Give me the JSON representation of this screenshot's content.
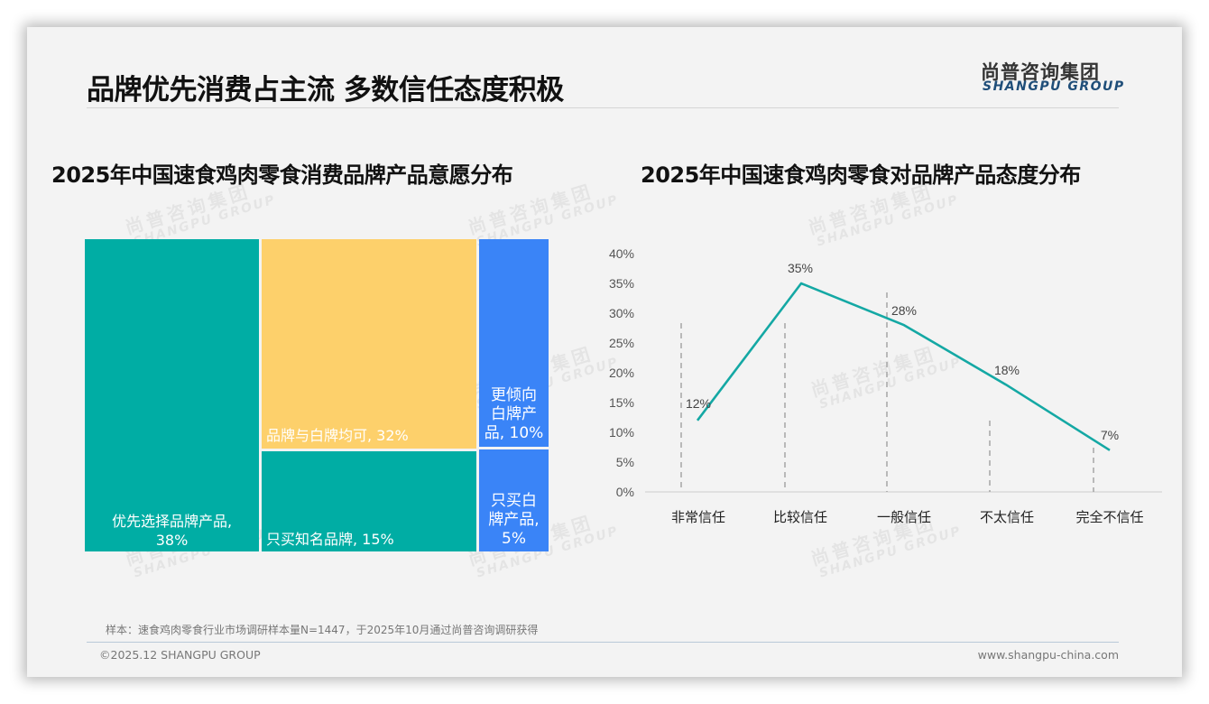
{
  "header": {
    "title": "品牌优先消费占主流 多数信任态度积极",
    "logo_cn": "尚普咨询集团",
    "logo_en": "SHANGPU GROUP"
  },
  "watermark": {
    "cn": "尚普咨询集团",
    "en": "SHANGPU GROUP"
  },
  "left_chart": {
    "title": "2025年中国速食鸡肉零食消费品牌产品意愿分布",
    "tiles": [
      {
        "label": "优先选择品牌产品,",
        "value": "38%",
        "color": "#00ada4"
      },
      {
        "label": "品牌与白牌均可, 32%",
        "color": "#fdd06b"
      },
      {
        "label": "只买知名品牌, 15%",
        "color": "#00ada4"
      },
      {
        "line1": "更倾向",
        "line2": "白牌产",
        "line3": "品, 10%",
        "color": "#3a84f7"
      },
      {
        "line1": "只买白",
        "line2": "牌产品,",
        "line3": "5%",
        "color": "#3a84f7"
      }
    ]
  },
  "right_chart": {
    "title": "2025年中国速食鸡肉零食对品牌产品态度分布",
    "line_color": "#14a8a4"
  },
  "chart_data": [
    {
      "type": "treemap",
      "title": "2025年中国速食鸡肉零食消费品牌产品意愿分布",
      "categories": [
        "优先选择品牌产品",
        "品牌与白牌均可",
        "只买知名品牌",
        "更倾向白牌产品",
        "只买白牌产品"
      ],
      "values": [
        38,
        32,
        15,
        10,
        5
      ],
      "unit": "%",
      "colors": [
        "#00ada4",
        "#fdd06b",
        "#00ada4",
        "#3a84f7",
        "#3a84f7"
      ]
    },
    {
      "type": "line",
      "title": "2025年中国速食鸡肉零食对品牌产品态度分布",
      "categories": [
        "非常信任",
        "比较信任",
        "一般信任",
        "不太信任",
        "完全不信任"
      ],
      "values": [
        12,
        35,
        28,
        18,
        7
      ],
      "data_labels": [
        "12%",
        "35%",
        "28%",
        "18%",
        "7%"
      ],
      "yticks": [
        "0%",
        "5%",
        "10%",
        "15%",
        "20%",
        "25%",
        "30%",
        "35%",
        "40%"
      ],
      "ylim": [
        0,
        40
      ],
      "xlabel": "",
      "ylabel": "",
      "grid": "dashed vertical drop lines",
      "legend": null
    }
  ],
  "footer": {
    "note": "样本：速食鸡肉零食行业市场调研样本量N=1447，于2025年10月通过尚普咨询调研获得",
    "copyright": "©2025.12 SHANGPU GROUP",
    "website": "www.shangpu-china.com"
  }
}
